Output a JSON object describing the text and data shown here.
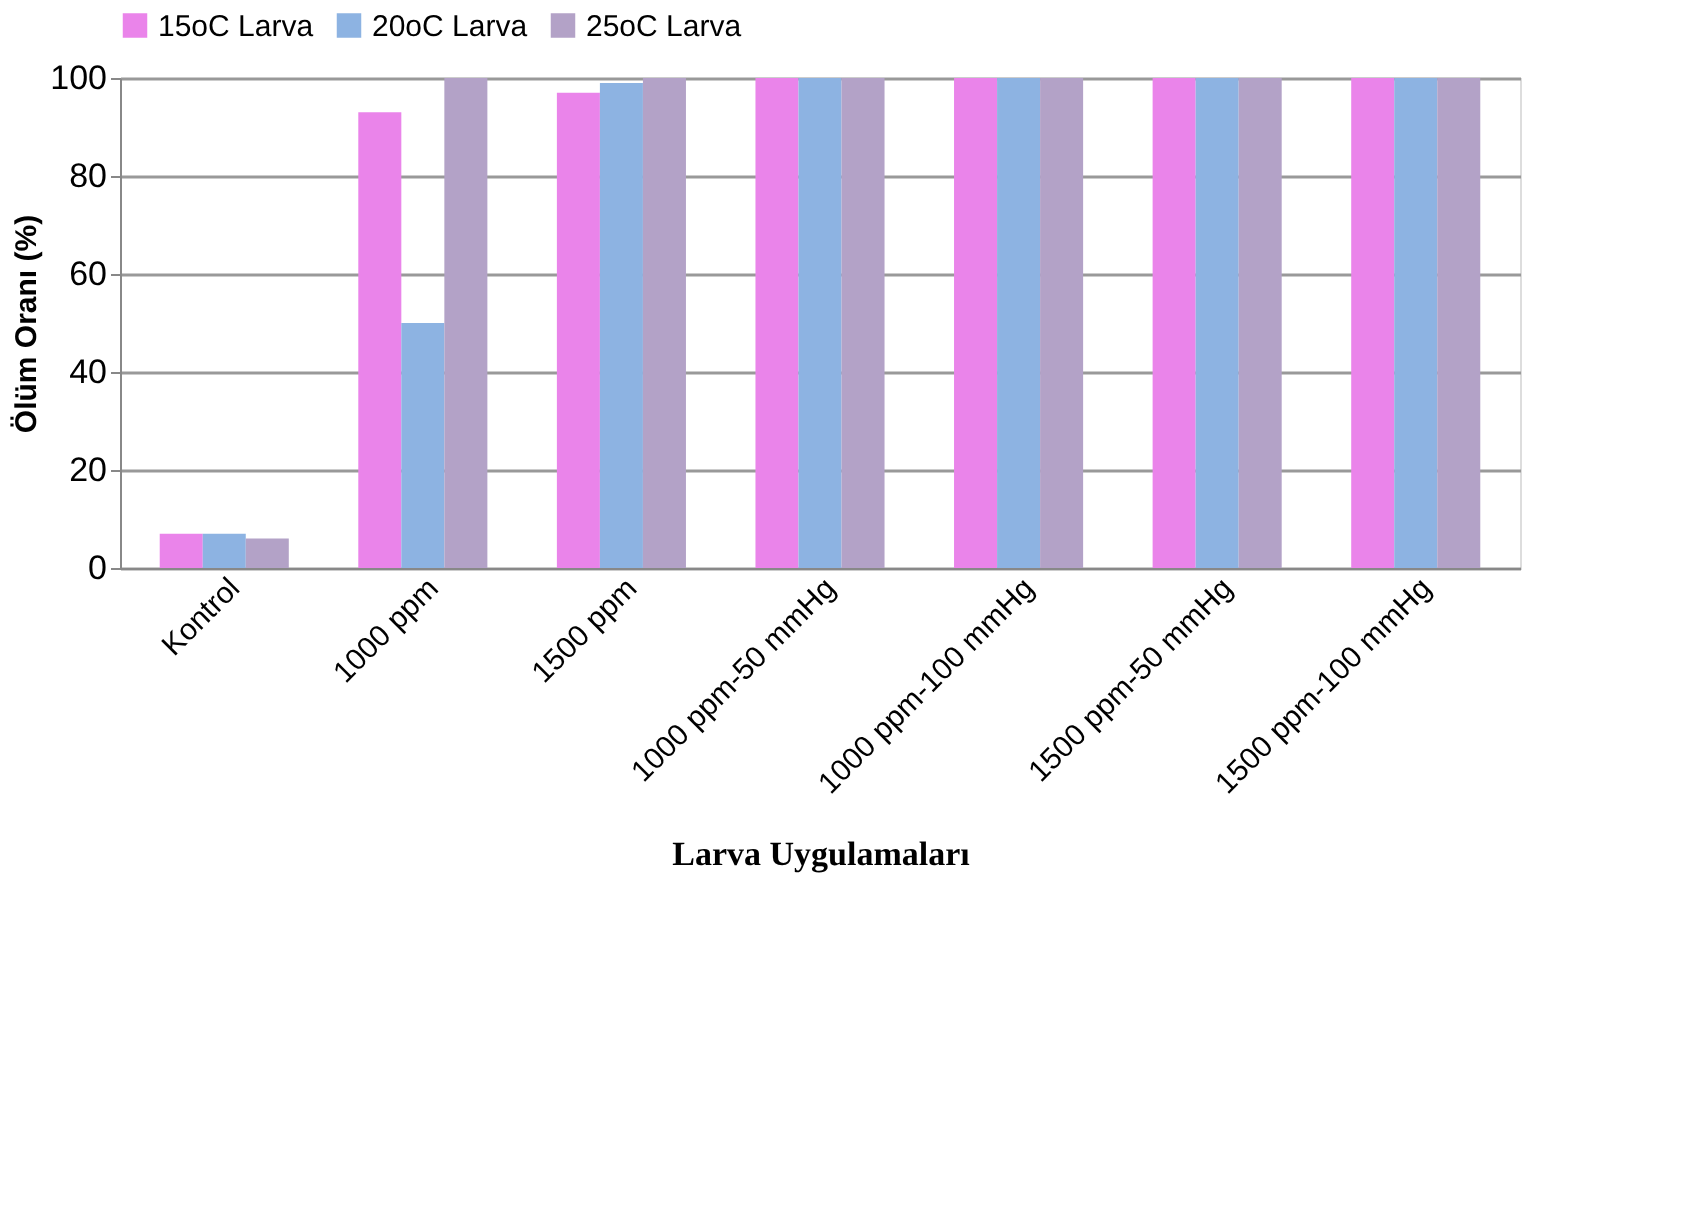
{
  "chart_data": {
    "type": "bar",
    "xlabel": "Larva Uygulamaları",
    "ylabel": "Ölüm Oranı (%)",
    "categories": [
      "Kontrol",
      "1000 ppm",
      "1500 ppm",
      "1000 ppm-50 mmHg",
      "1000 ppm-100 mmHg",
      "1500 ppm-50 mmHg",
      "1500 ppm-100 mmHg"
    ],
    "series": [
      {
        "name": "15oC Larva",
        "color": "#ea84ea",
        "values": [
          7,
          93,
          97,
          100,
          100,
          100,
          100
        ]
      },
      {
        "name": "20oC Larva",
        "color": "#8db3e2",
        "values": [
          7,
          50,
          99,
          100,
          100,
          100,
          100
        ]
      },
      {
        "name": "25oC Larva",
        "color": "#b3a2c7",
        "values": [
          6,
          100,
          100,
          100,
          100,
          100,
          100
        ]
      }
    ],
    "ylim": [
      0,
      100
    ],
    "yticks": [
      0,
      20,
      40,
      60,
      80,
      100
    ],
    "grid": "y",
    "legend": "top"
  }
}
